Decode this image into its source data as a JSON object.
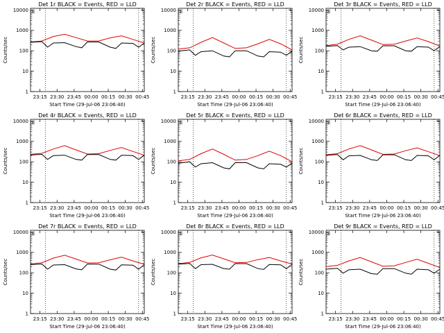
{
  "chart_data": [
    {
      "type": "line",
      "title": "Det 1r BLACK = Events, RED = LLD",
      "xlabel": "Start Time (29-Jul-06 23:06:40)",
      "ylabel": "Counts/sec",
      "xticks": [
        "23:15",
        "23:30",
        "23:45",
        "00:00",
        "00:15",
        "00:30",
        "00:45"
      ],
      "yticks": [
        "1",
        "10",
        "100",
        "1000",
        "10000"
      ],
      "yscale": "log",
      "ylim": [
        1,
        12000
      ],
      "xlim_min": [
        0,
        100
      ],
      "vlines_min": [
        13,
        95
      ],
      "marker": "E",
      "series": [
        {
          "color": "#e00000",
          "x": [
            0,
            10,
            20,
            30,
            40,
            50,
            60,
            70,
            80,
            90,
            100
          ],
          "values": [
            270,
            300,
            500,
            640,
            440,
            300,
            300,
            430,
            540,
            360,
            240
          ]
        },
        {
          "color": "#000000",
          "x": [
            0,
            10,
            15,
            20,
            30,
            40,
            45,
            50,
            60,
            70,
            75,
            80,
            90,
            95,
            100
          ],
          "values": [
            260,
            280,
            150,
            240,
            250,
            160,
            140,
            270,
            270,
            150,
            130,
            240,
            230,
            150,
            240
          ]
        }
      ]
    },
    {
      "type": "line",
      "title": "Det 2r BLACK = Events, RED = LLD",
      "xlabel": "Start Time (29-Jul-06 23:06:40)",
      "ylabel": "Counts/sec",
      "xticks": [
        "23:15",
        "23:30",
        "23:45",
        "00:00",
        "00:15",
        "00:30",
        "00:45"
      ],
      "yticks": [
        "1",
        "10",
        "100",
        "1000",
        "10000"
      ],
      "yscale": "log",
      "ylim": [
        1,
        12000
      ],
      "xlim_min": [
        0,
        100
      ],
      "vlines_min": [
        13,
        95
      ],
      "marker": "E",
      "series": [
        {
          "color": "#e00000",
          "x": [
            0,
            10,
            20,
            30,
            40,
            50,
            60,
            70,
            80,
            90,
            100
          ],
          "values": [
            120,
            140,
            260,
            440,
            240,
            130,
            140,
            220,
            360,
            220,
            110
          ]
        },
        {
          "color": "#000000",
          "x": [
            0,
            10,
            15,
            20,
            30,
            40,
            45,
            50,
            60,
            70,
            75,
            80,
            90,
            95,
            100
          ],
          "values": [
            95,
            110,
            60,
            90,
            100,
            55,
            50,
            100,
            100,
            55,
            50,
            90,
            85,
            60,
            95
          ]
        }
      ]
    },
    {
      "type": "line",
      "title": "Det 3r BLACK = Events, RED = LLD",
      "xlabel": "Start Time (29-Jul-06 23:06:40)",
      "ylabel": "Counts/sec",
      "xticks": [
        "23:15",
        "23:30",
        "23:45",
        "00:00",
        "00:15",
        "00:30",
        "00:45"
      ],
      "yticks": [
        "1",
        "10",
        "100",
        "1000",
        "10000"
      ],
      "yscale": "log",
      "ylim": [
        1,
        12000
      ],
      "xlim_min": [
        0,
        100
      ],
      "vlines_min": [
        13,
        95
      ],
      "marker": "E",
      "series": [
        {
          "color": "#e00000",
          "x": [
            0,
            10,
            20,
            30,
            40,
            50,
            60,
            70,
            80,
            90,
            100
          ],
          "values": [
            180,
            210,
            360,
            540,
            330,
            200,
            210,
            300,
            420,
            280,
            170
          ]
        },
        {
          "color": "#000000",
          "x": [
            0,
            10,
            15,
            20,
            30,
            40,
            45,
            50,
            60,
            70,
            75,
            80,
            90,
            95,
            100
          ],
          "values": [
            165,
            180,
            110,
            150,
            160,
            100,
            95,
            175,
            175,
            100,
            95,
            160,
            150,
            100,
            160
          ]
        }
      ]
    },
    {
      "type": "line",
      "title": "Det 4r BLACK = Events, RED = LLD",
      "xlabel": "Start Time (29-Jul-06 23:06:40)",
      "ylabel": "Counts/sec",
      "xticks": [
        "23:15",
        "23:30",
        "23:45",
        "00:00",
        "00:15",
        "00:30",
        "00:45"
      ],
      "yticks": [
        "1",
        "10",
        "100",
        "1000",
        "10000"
      ],
      "yscale": "log",
      "ylim": [
        1,
        12000
      ],
      "xlim_min": [
        0,
        100
      ],
      "vlines_min": [
        13,
        95
      ],
      "marker": "E",
      "series": [
        {
          "color": "#e00000",
          "x": [
            0,
            10,
            20,
            30,
            40,
            50,
            60,
            70,
            80,
            90,
            100
          ],
          "values": [
            230,
            260,
            420,
            620,
            380,
            240,
            250,
            360,
            500,
            320,
            210
          ]
        },
        {
          "color": "#000000",
          "x": [
            0,
            10,
            15,
            20,
            30,
            40,
            45,
            50,
            60,
            70,
            75,
            80,
            90,
            95,
            100
          ],
          "values": [
            215,
            230,
            130,
            200,
            210,
            130,
            120,
            225,
            225,
            130,
            120,
            210,
            200,
            130,
            210
          ]
        }
      ]
    },
    {
      "type": "line",
      "title": "Det 5r BLACK = Events, RED = LLD",
      "xlabel": "Start Time (29-Jul-06 23:06:40)",
      "ylabel": "Counts/sec",
      "xticks": [
        "23:15",
        "23:30",
        "23:45",
        "00:00",
        "00:15",
        "00:30",
        "00:45"
      ],
      "yticks": [
        "1",
        "10",
        "100",
        "1000",
        "10000"
      ],
      "yscale": "log",
      "ylim": [
        1,
        12000
      ],
      "xlim_min": [
        0,
        100
      ],
      "vlines_min": [
        13,
        95
      ],
      "marker": "E",
      "series": [
        {
          "color": "#e00000",
          "x": [
            0,
            10,
            20,
            30,
            40,
            50,
            60,
            70,
            80,
            90,
            100
          ],
          "values": [
            110,
            130,
            250,
            420,
            230,
            120,
            130,
            200,
            330,
            200,
            100
          ]
        },
        {
          "color": "#000000",
          "x": [
            0,
            10,
            15,
            20,
            30,
            40,
            45,
            50,
            60,
            70,
            75,
            80,
            90,
            95,
            100
          ],
          "values": [
            85,
            100,
            55,
            80,
            90,
            50,
            45,
            90,
            90,
            50,
            45,
            80,
            75,
            55,
            85
          ]
        }
      ]
    },
    {
      "type": "line",
      "title": "Det 6r BLACK = Events, RED = LLD",
      "xlabel": "Start Time (29-Jul-06 23:06:40)",
      "ylabel": "Counts/sec",
      "xticks": [
        "23:15",
        "23:30",
        "23:45",
        "00:00",
        "00:15",
        "00:30",
        "00:45"
      ],
      "yticks": [
        "1",
        "10",
        "100",
        "1000",
        "10000"
      ],
      "yscale": "log",
      "ylim": [
        1,
        12000
      ],
      "xlim_min": [
        0,
        100
      ],
      "vlines_min": [
        13,
        95
      ],
      "marker": "E",
      "series": [
        {
          "color": "#e00000",
          "x": [
            0,
            10,
            20,
            30,
            40,
            50,
            60,
            70,
            80,
            90,
            100
          ],
          "values": [
            220,
            250,
            420,
            620,
            380,
            230,
            240,
            350,
            480,
            310,
            200
          ]
        },
        {
          "color": "#000000",
          "x": [
            0,
            10,
            15,
            20,
            30,
            40,
            45,
            50,
            60,
            70,
            75,
            80,
            90,
            95,
            100
          ],
          "values": [
            210,
            225,
            125,
            195,
            205,
            125,
            115,
            220,
            220,
            125,
            115,
            205,
            195,
            125,
            205
          ]
        }
      ]
    },
    {
      "type": "line",
      "title": "Det 7r BLACK = Events, RED = LLD",
      "xlabel": "Start Time (29-Jul-06 23:06:40)",
      "ylabel": "Counts/sec",
      "xticks": [
        "23:15",
        "23:30",
        "23:45",
        "00:00",
        "00:15",
        "00:30",
        "00:45"
      ],
      "yticks": [
        "1",
        "10",
        "100",
        "1000",
        "10000"
      ],
      "yscale": "log",
      "ylim": [
        1,
        12000
      ],
      "xlim_min": [
        0,
        100
      ],
      "vlines_min": [
        13,
        95
      ],
      "marker": "E",
      "series": [
        {
          "color": "#e00000",
          "x": [
            0,
            10,
            20,
            30,
            40,
            50,
            60,
            70,
            80,
            90,
            100
          ],
          "values": [
            270,
            310,
            520,
            720,
            470,
            300,
            310,
            430,
            580,
            380,
            260
          ]
        },
        {
          "color": "#000000",
          "x": [
            0,
            10,
            15,
            20,
            30,
            40,
            45,
            50,
            60,
            70,
            75,
            80,
            90,
            95,
            100
          ],
          "values": [
            250,
            270,
            150,
            240,
            250,
            155,
            140,
            265,
            265,
            150,
            135,
            245,
            235,
            150,
            250
          ]
        }
      ]
    },
    {
      "type": "line",
      "title": "Det 8r BLACK = Events, RED = LLD",
      "xlabel": "Start Time (29-Jul-06 23:06:40)",
      "ylabel": "Counts/sec",
      "xticks": [
        "23:15",
        "23:30",
        "23:45",
        "00:00",
        "00:15",
        "00:30",
        "00:45"
      ],
      "yticks": [
        "1",
        "10",
        "100",
        "1000",
        "10000"
      ],
      "yscale": "log",
      "ylim": [
        1,
        12000
      ],
      "xlim_min": [
        0,
        100
      ],
      "vlines_min": [
        13,
        95
      ],
      "marker": "E",
      "series": [
        {
          "color": "#e00000",
          "x": [
            0,
            10,
            20,
            30,
            40,
            50,
            60,
            70,
            80,
            90,
            100
          ],
          "values": [
            280,
            320,
            540,
            740,
            480,
            310,
            320,
            440,
            560,
            380,
            270
          ]
        },
        {
          "color": "#000000",
          "x": [
            0,
            10,
            15,
            20,
            30,
            40,
            45,
            50,
            60,
            70,
            75,
            80,
            90,
            95,
            100
          ],
          "values": [
            265,
            285,
            160,
            250,
            260,
            160,
            150,
            280,
            280,
            160,
            145,
            255,
            245,
            160,
            260
          ]
        }
      ]
    },
    {
      "type": "line",
      "title": "Det 9r BLACK = Events, RED = LLD",
      "xlabel": "Start Time (29-Jul-06 23:06:40)",
      "ylabel": "Counts/sec",
      "xticks": [
        "23:15",
        "23:30",
        "23:45",
        "00:00",
        "00:15",
        "00:30",
        "00:45"
      ],
      "yticks": [
        "1",
        "10",
        "100",
        "1000",
        "10000"
      ],
      "yscale": "log",
      "ylim": [
        1,
        12000
      ],
      "xlim_min": [
        0,
        100
      ],
      "vlines_min": [
        13,
        95
      ],
      "marker": "E",
      "series": [
        {
          "color": "#e00000",
          "x": [
            0,
            10,
            20,
            30,
            40,
            50,
            60,
            70,
            80,
            90,
            100
          ],
          "values": [
            200,
            230,
            380,
            560,
            340,
            210,
            220,
            320,
            460,
            290,
            180
          ]
        },
        {
          "color": "#000000",
          "x": [
            0,
            10,
            15,
            20,
            30,
            40,
            45,
            50,
            60,
            70,
            75,
            80,
            90,
            95,
            100
          ],
          "values": [
            150,
            165,
            95,
            140,
            150,
            90,
            85,
            160,
            160,
            95,
            85,
            150,
            140,
            95,
            150
          ]
        }
      ]
    }
  ]
}
